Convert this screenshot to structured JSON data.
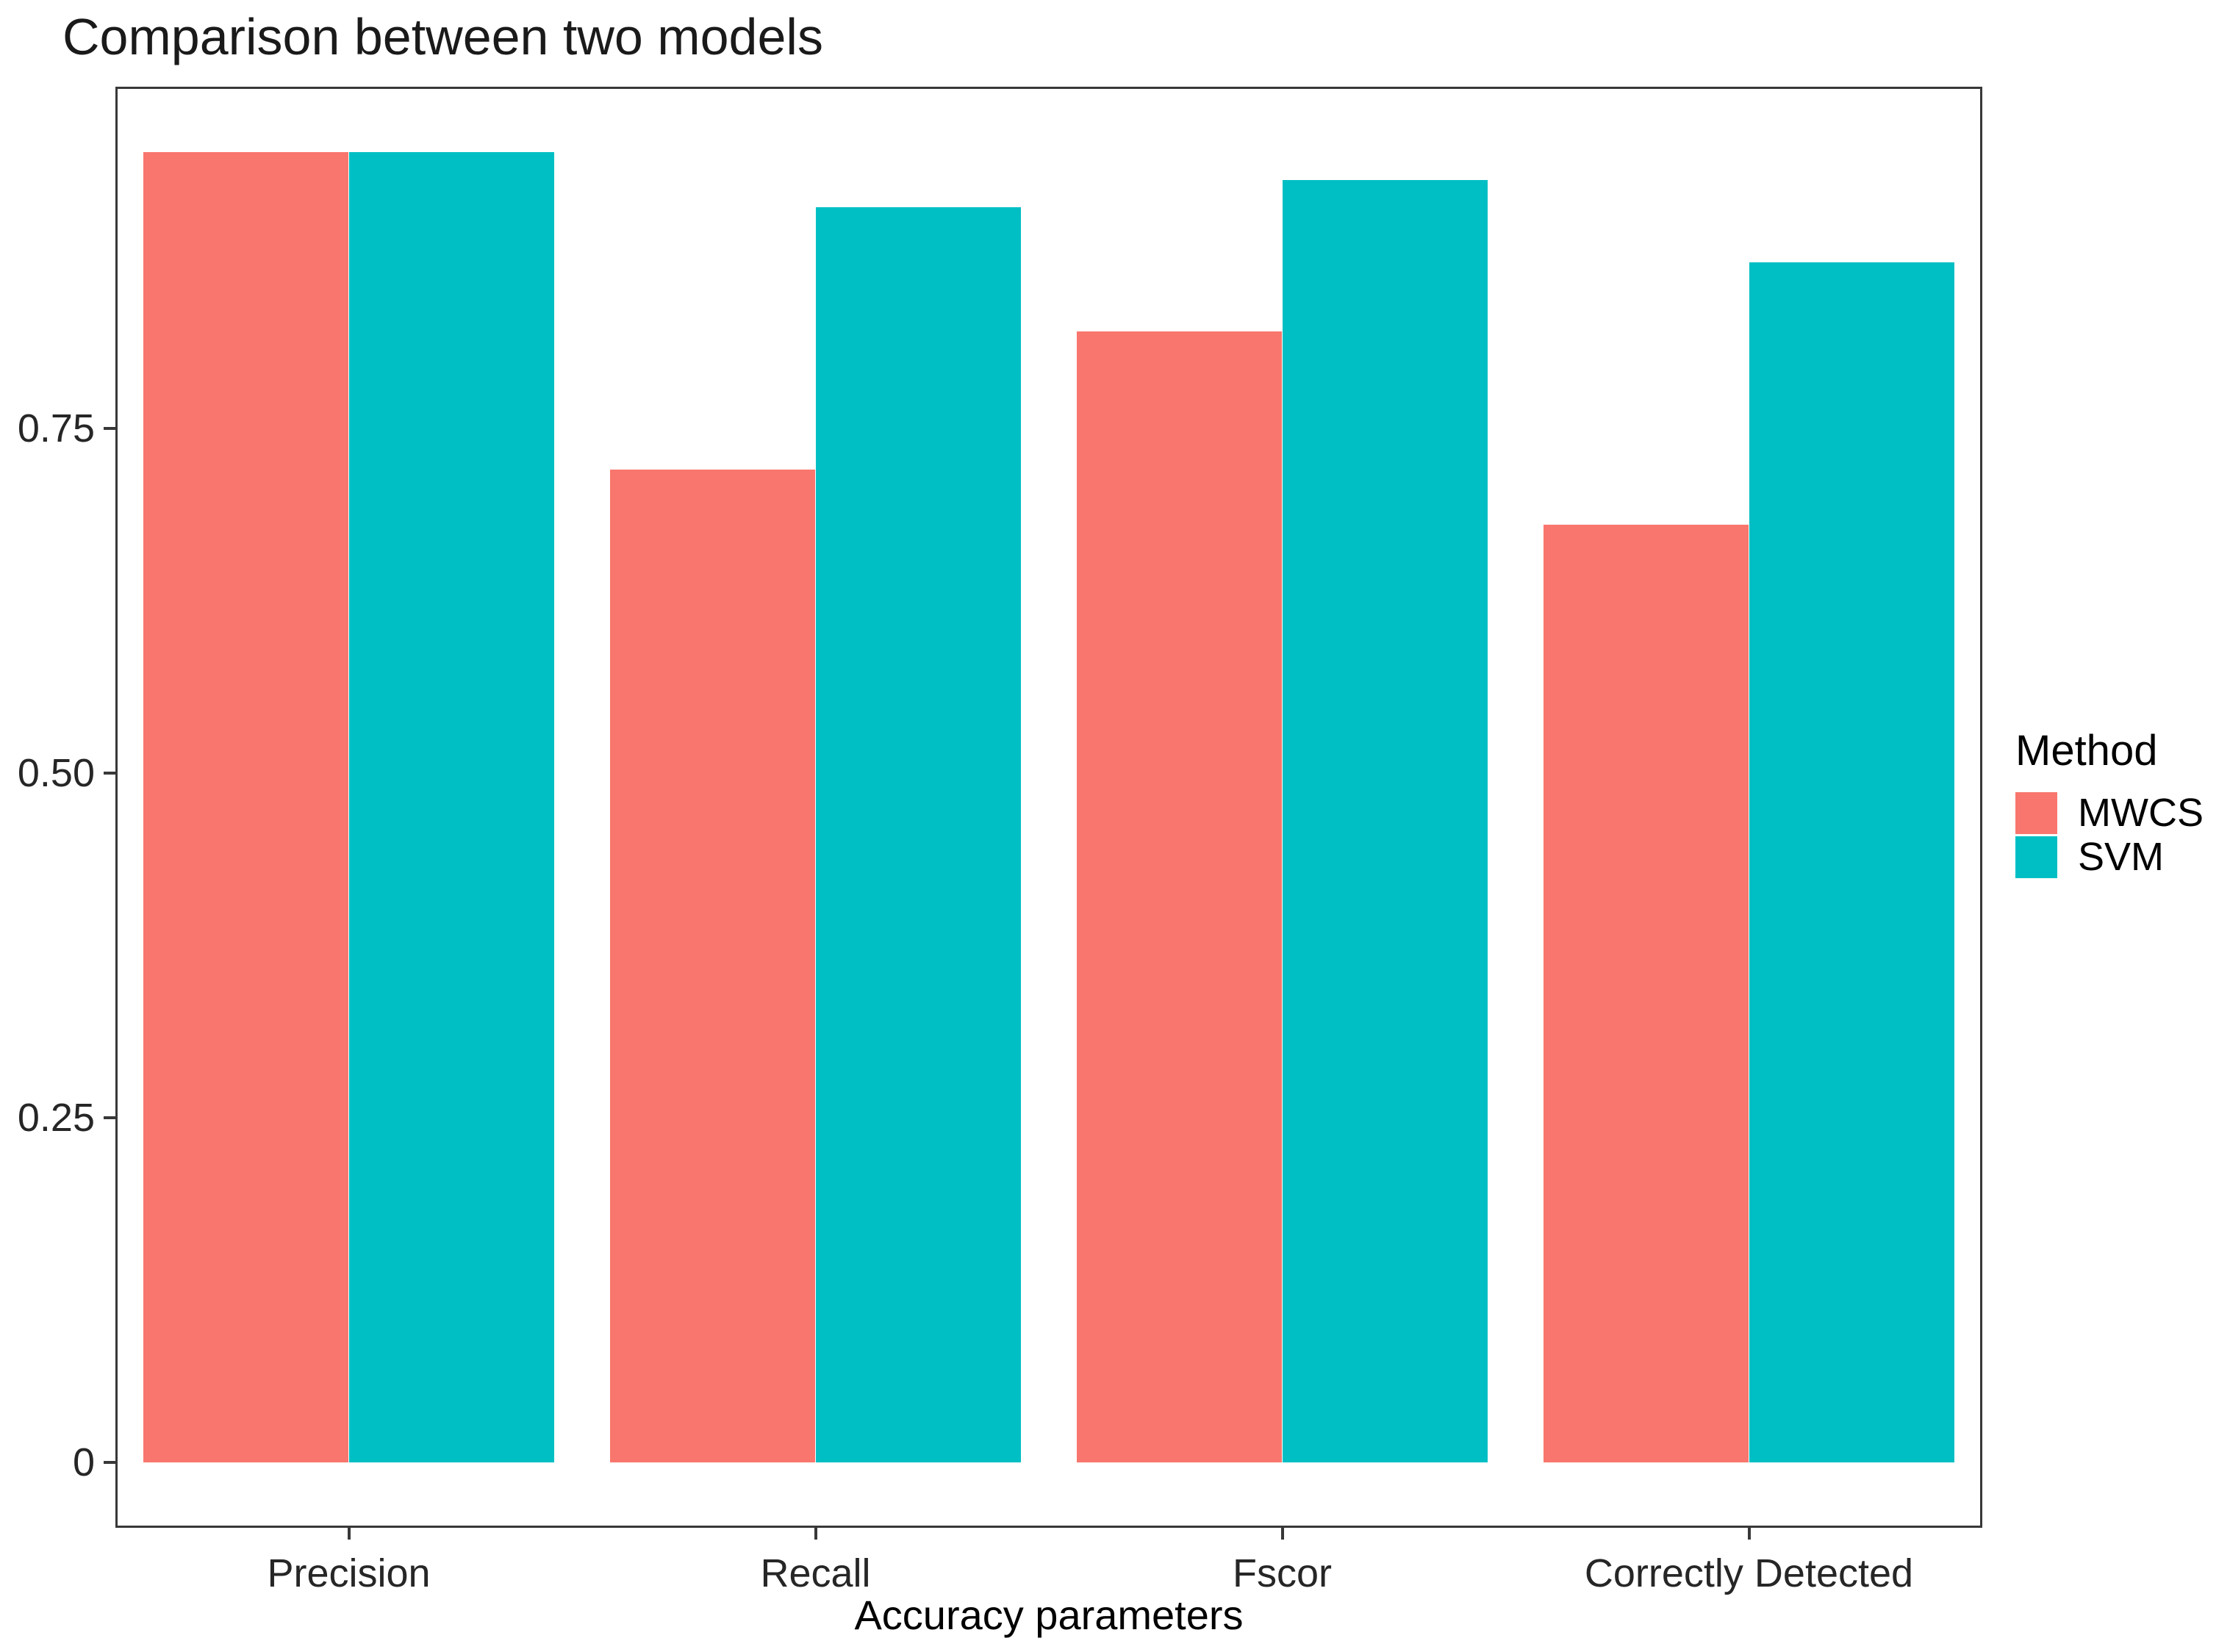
{
  "chart_data": {
    "type": "bar",
    "title": "Comparison between two models",
    "xlabel": "Accuracy parameters",
    "ylabel": "",
    "categories": [
      "Precision",
      "Recall",
      "Fscor",
      "Correctly Detected"
    ],
    "series": [
      {
        "name": "MWCS",
        "color": "#F8766D",
        "values": [
          0.95,
          0.72,
          0.82,
          0.68
        ]
      },
      {
        "name": "SVM",
        "color": "#00BFC4",
        "values": [
          0.95,
          0.91,
          0.93,
          0.87
        ]
      }
    ],
    "ylim": [
      0,
      1.0
    ],
    "y_ticks": [
      {
        "value": 0,
        "label": "0"
      },
      {
        "value": 0.25,
        "label": "0.25"
      },
      {
        "value": 0.5,
        "label": "0.50"
      },
      {
        "value": 0.75,
        "label": "0.75"
      }
    ],
    "grid": false,
    "background": "#ffffff",
    "legend": {
      "title": "Method",
      "position": "right"
    }
  }
}
